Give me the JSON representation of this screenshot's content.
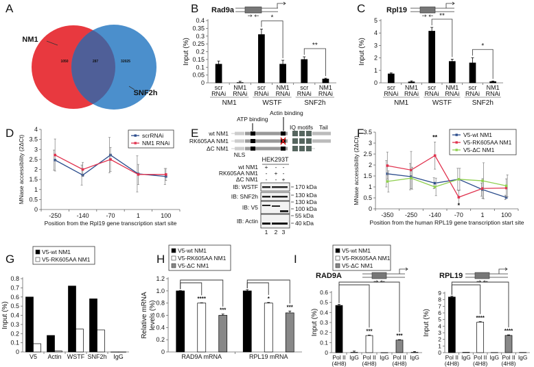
{
  "figure_labels": [
    "A",
    "B",
    "C",
    "D",
    "E",
    "F",
    "G",
    "H",
    "I"
  ],
  "chart_data": [
    {
      "panel": "A",
      "type": "venn",
      "sets": [
        "NM1",
        "SNF2h"
      ],
      "counts": [
        "1050",
        "287",
        "32025"
      ],
      "colors": [
        "#e8393f",
        "#4b8fcc",
        "#4f5f98"
      ]
    },
    {
      "panel": "B",
      "type": "bar",
      "title": "Rad9a",
      "ylabel": "Input (%)",
      "ylim": [
        0,
        0.4
      ],
      "yticks": [
        "0",
        "0.05",
        "0.1",
        "0.15",
        "0.2",
        "0.25",
        "0.3",
        "0.35",
        "0.4"
      ],
      "categories": [
        [
          "scr",
          "RNAi"
        ],
        [
          "NM1",
          "RNAi"
        ],
        [
          "scr",
          "RNAi"
        ],
        [
          "NM1",
          "RNAi"
        ],
        [
          "scr",
          "RNAi"
        ],
        [
          "NM1",
          "RNAi"
        ]
      ],
      "groups": [
        "NM1",
        "WSTF",
        "SNF2h"
      ],
      "series": [
        {
          "values": [
            0.12,
            0.002,
            0.31,
            0.12,
            0.15,
            0.025
          ],
          "errors": [
            0.02,
            0.008,
            0.035,
            0.025,
            0.017,
            0.005
          ],
          "color": "#000000"
        }
      ],
      "significance": [
        {
          "from": [
            2,
            0
          ],
          "to": [
            3,
            0
          ],
          "label": "*"
        },
        {
          "from": [
            4,
            0
          ],
          "to": [
            5,
            0
          ],
          "label": "**"
        }
      ]
    },
    {
      "panel": "C",
      "type": "bar",
      "title": "Rpl19",
      "ylabel": "Input (%)",
      "ylim": [
        0,
        5
      ],
      "yticks": [
        "0",
        "1",
        "2",
        "3",
        "4",
        "5"
      ],
      "categories": [
        [
          "scr",
          "RNAi"
        ],
        [
          "NM1",
          "RNAi"
        ],
        [
          "scr",
          "RNAi"
        ],
        [
          "NM1",
          "RNAi"
        ],
        [
          "scr",
          "RNAi"
        ],
        [
          "NM1",
          "RNAi"
        ]
      ],
      "groups": [
        "NM1",
        "WSTF",
        "SNF2h"
      ],
      "series": [
        {
          "values": [
            0.72,
            0.08,
            4.15,
            1.72,
            1.6,
            0.1
          ],
          "errors": [
            0.08,
            0.08,
            0.3,
            0.18,
            0.42,
            0.05
          ],
          "color": "#000000"
        }
      ],
      "significance": [
        {
          "from": [
            2,
            0
          ],
          "to": [
            3,
            0
          ],
          "label": "**"
        },
        {
          "from": [
            4,
            0
          ],
          "to": [
            5,
            0
          ],
          "label": "*"
        }
      ]
    },
    {
      "panel": "D",
      "type": "line",
      "ylabel": "MNase accessibility (2ΔCt)",
      "xlabel": "Position from the Rpl19 gene transcription start site",
      "ylim": [
        0,
        4
      ],
      "yticks": [
        "0",
        "0.5",
        "1",
        "1.5",
        "2",
        "2.5",
        "3",
        "3.5",
        "4"
      ],
      "x": [
        "-250",
        "-140",
        "-70",
        "1",
        "100"
      ],
      "series": [
        {
          "name": "scrRNAi",
          "values": [
            2.47,
            1.72,
            2.72,
            1.78,
            1.65
          ],
          "errors": [
            0.5,
            0.5,
            0.88,
            0.9,
            0.4
          ],
          "color": "#2b4c8c"
        },
        {
          "name": "NM1 RNAi",
          "values": [
            2.72,
            2.0,
            2.5,
            1.75,
            1.75
          ],
          "errors": [
            0.8,
            0.35,
            0.6,
            0.5,
            0.3
          ],
          "color": "#e0324e"
        }
      ],
      "annotations": []
    },
    {
      "panel": "F",
      "type": "line",
      "ylabel": "MNase accessibility (2ΔCt)",
      "xlabel": "Position from the human RPL19 gene transcription start site",
      "ylim": [
        0,
        3.5
      ],
      "yticks": [
        "0",
        "0.5",
        "1",
        "1.5",
        "2",
        "2.5",
        "3",
        "3.5"
      ],
      "x": [
        "-350",
        "-250",
        "-140",
        "-70",
        "1",
        "100"
      ],
      "series": [
        {
          "name": "V5-wt NM1",
          "values": [
            1.6,
            1.47,
            1.17,
            1.35,
            0.88,
            0.52
          ],
          "errors": [
            0.6,
            0.6,
            0.25,
            0.5,
            0.3,
            0.1
          ],
          "color": "#2b4c8c"
        },
        {
          "name": "V5-RK605AA NM1",
          "values": [
            1.97,
            1.77,
            2.43,
            0.53,
            0.93,
            0.95
          ],
          "errors": [
            0.62,
            0.85,
            0.62,
            0.3,
            0.45,
            0.42
          ],
          "color": "#e0324e"
        },
        {
          "name": "V5-ΔC NM1",
          "values": [
            1.25,
            1.4,
            1.0,
            1.35,
            1.28,
            1.05
          ],
          "errors": [
            0.48,
            0.5,
            0.4,
            0.5,
            0.82,
            0.5
          ],
          "color": "#8fcf4f"
        }
      ],
      "annotations": [
        {
          "x_index": 2,
          "series": 1,
          "label": "**",
          "position": "above"
        },
        {
          "x_index": 3,
          "series": 1,
          "label": "*",
          "position": "below"
        }
      ]
    },
    {
      "panel": "G",
      "type": "bar",
      "ylabel": "Input (%)",
      "ylim": [
        0,
        0.8
      ],
      "yticks": [
        "0",
        "0.1",
        "0.2",
        "0.3",
        "0.4",
        "0.5",
        "0.6",
        "0.7",
        "0.8"
      ],
      "categories": [
        [
          "V5"
        ],
        [
          "Actin"
        ],
        [
          "WSTF"
        ],
        [
          "SNF2h"
        ],
        [
          "IgG"
        ]
      ],
      "series": [
        {
          "name": "V5-wt NM1",
          "values": [
            0.6,
            0.18,
            0.72,
            0.58,
            0
          ],
          "color": "#000000"
        },
        {
          "name": "V5-RK605AA NM1",
          "values": [
            0.09,
            0.01,
            0.25,
            0.24,
            0
          ],
          "color": "#ffffff"
        }
      ],
      "legend": [
        "V5-wt NM1",
        "V5-RK605AA NM1"
      ],
      "significance": []
    },
    {
      "panel": "H",
      "type": "bar",
      "ylabel": [
        "Relative mRNA",
        "levels (%)"
      ],
      "ylim": [
        0,
        1.2
      ],
      "yticks": [
        "0",
        "0.2",
        "0.4",
        "0.6",
        "0.8",
        "1.0",
        "1.2"
      ],
      "categories": [
        [
          "RAD9A mRNA"
        ],
        [
          "RPL19 mRNA"
        ]
      ],
      "series": [
        {
          "name": "V5-wt NM1",
          "values": [
            1.0,
            1.0
          ],
          "errors": [
            0.005,
            0.02
          ],
          "color": "#000000"
        },
        {
          "name": "V5-RK605AA NM1",
          "values": [
            0.8,
            0.8
          ],
          "errors": [
            0.005,
            0.01
          ],
          "color": "#ffffff"
        },
        {
          "name": "V5-ΔC NM1",
          "values": [
            0.6,
            0.64
          ],
          "errors": [
            0.02,
            0.03
          ],
          "color": "#888888"
        }
      ],
      "legend": [
        "V5-wt NM1",
        "V5-RK605AA NM1",
        "V5-ΔC NM1"
      ],
      "significance": [
        {
          "from": [
            0,
            0
          ],
          "to": [
            0,
            1
          ],
          "label": "****"
        },
        {
          "from": [
            0,
            0
          ],
          "to": [
            0,
            2
          ],
          "label": "***"
        },
        {
          "from": [
            1,
            0
          ],
          "to": [
            1,
            1
          ],
          "label": "*"
        },
        {
          "from": [
            1,
            0
          ],
          "to": [
            1,
            2
          ],
          "label": "***"
        }
      ]
    },
    {
      "panel": "I",
      "type": "bar",
      "title": "RAD9A",
      "ylabel": "Input (%)",
      "ylim": [
        0,
        0.6
      ],
      "yticks": [
        "0",
        "0.1",
        "0.2",
        "0.3",
        "0.4",
        "0.5",
        "0.6"
      ],
      "categories": [
        [
          "Pol II",
          "(4H8)"
        ],
        [
          "IgG"
        ],
        [
          "Pol II",
          "(4H8)"
        ],
        [
          "IgG"
        ],
        [
          "Pol II",
          "(4H8)"
        ],
        [
          "IgG"
        ]
      ],
      "series": [
        {
          "values": [
            0.47,
            0.003,
            0.17,
            0.0,
            0.125,
            0.003
          ],
          "errors": [
            0.01,
            0.012,
            0.005,
            0,
            0.004,
            0.008
          ],
          "colors": [
            "#000000",
            "#000000",
            "#ffffff",
            "#ffffff",
            "#888888",
            "#888888"
          ]
        }
      ],
      "legend": [
        "V5-wt NM1",
        "V5-RK605AA NM1",
        "V5-ΔC NM1"
      ],
      "legend_colors": [
        "#000000",
        "#ffffff",
        "#888888"
      ],
      "significance": [
        {
          "from": [
            0,
            0
          ],
          "to": [
            2,
            0
          ],
          "label": "***"
        },
        {
          "from": [
            0,
            0
          ],
          "to": [
            4,
            0
          ],
          "label": "***"
        }
      ]
    },
    {
      "panel": "I",
      "type": "bar",
      "title": "RPL19",
      "ylabel": "Input (%)",
      "ylim": [
        0,
        9
      ],
      "yticks": [
        "0",
        "1",
        "2",
        "3",
        "4",
        "5",
        "6",
        "7",
        "8",
        "9"
      ],
      "categories": [
        [
          "Pol II",
          "(4H8)"
        ],
        [
          "IgG"
        ],
        [
          "Pol II",
          "(4H8)"
        ],
        [
          "IgG"
        ],
        [
          "Pol II",
          "(4H8)"
        ],
        [
          "IgG"
        ]
      ],
      "series": [
        {
          "values": [
            8.4,
            0.05,
            4.6,
            0.02,
            2.6,
            0.03
          ],
          "errors": [
            0.12,
            0,
            0.08,
            0,
            0.08,
            0
          ],
          "colors": [
            "#000000",
            "#000000",
            "#ffffff",
            "#ffffff",
            "#888888",
            "#888888"
          ]
        }
      ],
      "significance": [
        {
          "from": [
            0,
            0
          ],
          "to": [
            2,
            0
          ],
          "label": "****"
        },
        {
          "from": [
            0,
            0
          ],
          "to": [
            4,
            0
          ],
          "label": "****"
        }
      ]
    }
  ],
  "panel_e": {
    "domain_labels": {
      "atp": "ATP binding",
      "actin": "Actin binding",
      "iq": "IQ motifs",
      "tail": "Tail",
      "nls": "NLS"
    },
    "constructs": [
      "wt NM1",
      "RK605AA NM1",
      "ΔC NM1"
    ],
    "cell_line": "HEK293T",
    "lanes_matrix": [
      [
        "+",
        "-",
        "-"
      ],
      [
        "-",
        "+",
        "-"
      ],
      [
        "-",
        "-",
        "+"
      ]
    ],
    "blots": [
      "IB: WSTF",
      "IB: SNF2h",
      "IB: V5",
      "IB: Actin"
    ],
    "markers": [
      "170 kDa",
      "130 kDa",
      "130 kDa",
      "100 kDa",
      "55 kDa",
      "40 kDa"
    ],
    "lane_numbers": [
      "1",
      "2",
      "3"
    ]
  }
}
